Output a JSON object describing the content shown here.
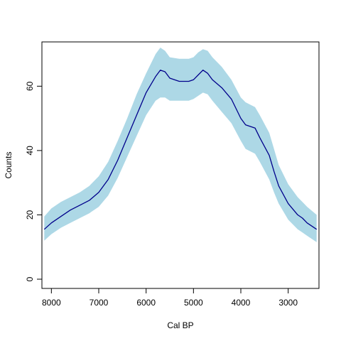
{
  "chart_data": {
    "type": "area",
    "xlabel": "Cal BP",
    "ylabel": "Counts",
    "x_reversed": true,
    "xlim": [
      8200,
      2350
    ],
    "ylim": [
      0,
      72
    ],
    "x_ticks": [
      {
        "value": 8000,
        "label": "8000"
      },
      {
        "value": 7000,
        "label": "7000"
      },
      {
        "value": 6000,
        "label": "6000"
      },
      {
        "value": 5000,
        "label": "5000"
      },
      {
        "value": 4000,
        "label": "4000"
      },
      {
        "value": 3000,
        "label": "3000"
      }
    ],
    "y_ticks": [
      {
        "value": 0,
        "label": "0"
      },
      {
        "value": 20,
        "label": "20"
      },
      {
        "value": 40,
        "label": "40"
      },
      {
        "value": 60,
        "label": "60"
      }
    ],
    "colors": {
      "band": "#add8e6",
      "line": "#00008b"
    },
    "series": [
      {
        "x": [
          8150,
          8000,
          7800,
          7600,
          7400,
          7200,
          7000,
          6800,
          6600,
          6400,
          6200,
          6000,
          5800,
          5700,
          5600,
          5500,
          5300,
          5100,
          5000,
          4900,
          4800,
          4700,
          4600,
          4400,
          4200,
          4000,
          3900,
          3700,
          3600,
          3400,
          3300,
          3200,
          3000,
          2800,
          2700,
          2600,
          2400
        ],
        "mean": [
          15.5,
          17.5,
          19.5,
          21.5,
          23,
          24.5,
          27,
          31,
          37,
          44,
          51,
          58,
          63,
          65,
          64.5,
          62.5,
          61.5,
          61.5,
          62,
          63.5,
          65,
          64,
          62,
          59.5,
          56,
          50,
          48,
          47,
          44,
          38.5,
          33.5,
          29,
          23.5,
          20,
          19,
          17.5,
          15.5
        ],
        "lower": [
          12,
          14,
          16,
          17.5,
          19,
          20.5,
          22.5,
          26,
          31.5,
          38,
          44.5,
          51,
          55.5,
          56.5,
          56.5,
          55.5,
          55.5,
          55.5,
          56,
          57,
          58,
          57.5,
          55.5,
          52,
          48.5,
          43,
          40.5,
          39,
          36.5,
          31,
          27,
          23.5,
          18.5,
          15.5,
          14.5,
          13.5,
          11.5
        ],
        "upper": [
          19.5,
          22,
          24,
          25.5,
          27,
          29,
          32,
          36.5,
          43,
          50,
          57.5,
          64,
          70,
          72,
          71,
          69,
          68.5,
          68.5,
          69,
          70.5,
          71.5,
          71,
          69,
          66,
          62,
          56.5,
          55,
          53.5,
          51,
          45.5,
          40.5,
          35.5,
          29.5,
          25.5,
          24,
          22.5,
          20
        ]
      }
    ]
  }
}
